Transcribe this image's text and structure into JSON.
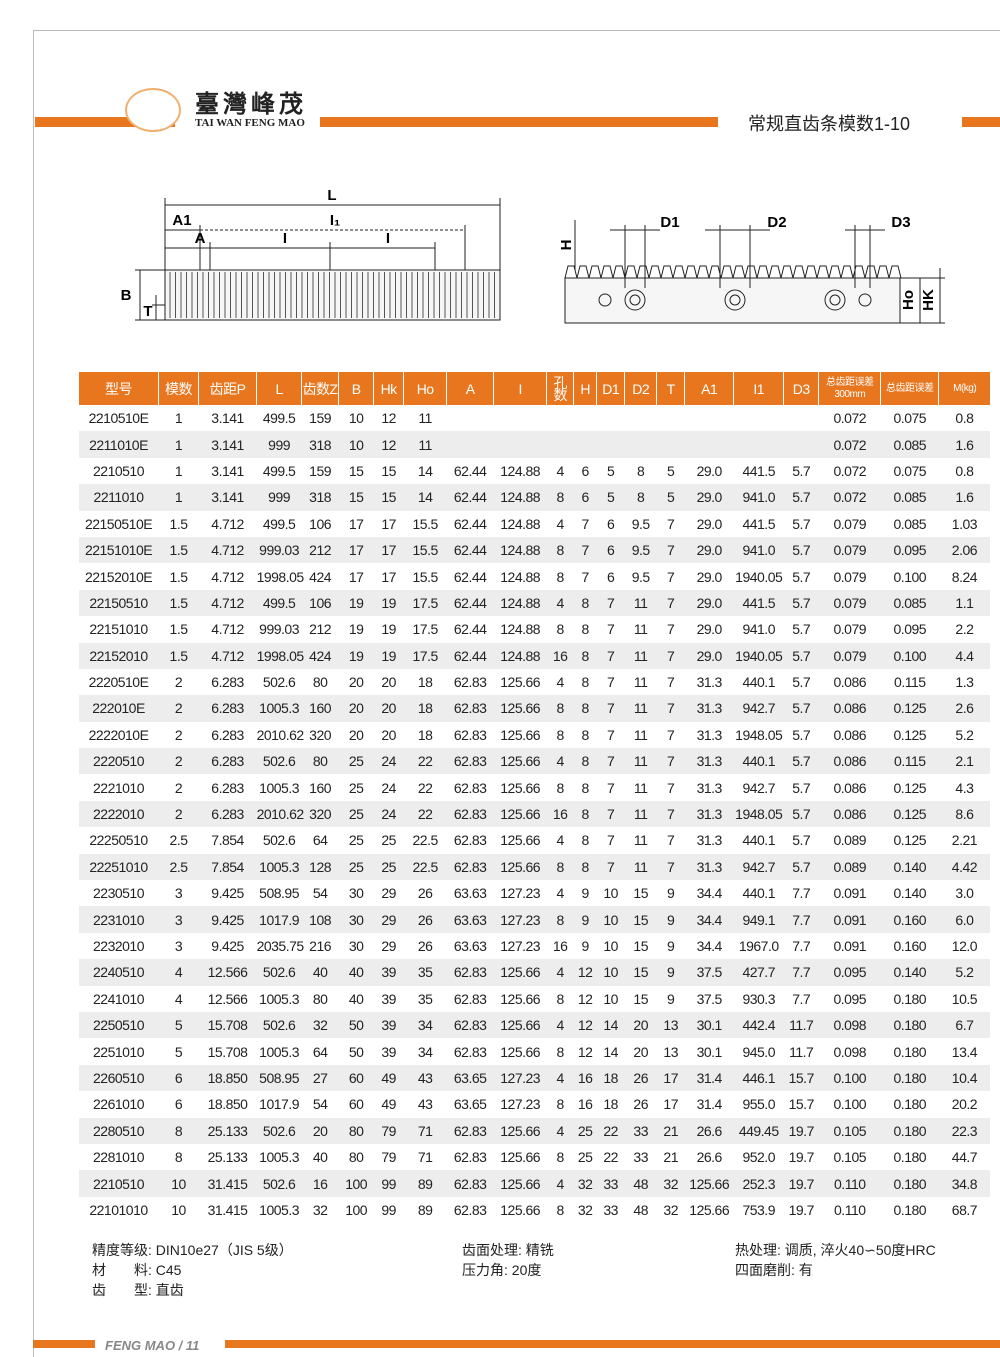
{
  "header": {
    "brand_cn": "臺灣峰茂",
    "brand_en": "TAI WAN FENG MAO",
    "title": "常规直齿条模数1-10"
  },
  "diagrams": {
    "left": {
      "labels": [
        "L",
        "A1",
        "I₁",
        "A",
        "I",
        "I",
        "B",
        "T"
      ]
    },
    "right": {
      "labels": [
        "H",
        "D1",
        "D2",
        "D3",
        "Ho",
        "HK"
      ]
    }
  },
  "table": {
    "headers": [
      "型号",
      "模数",
      "齿距P",
      "L",
      "齿数Z",
      "B",
      "Hk",
      "Ho",
      "A",
      "I",
      "孔数",
      "H",
      "D1",
      "D2",
      "T",
      "A1",
      "I1",
      "D3",
      "总齿距误差300mm",
      "总齿距误差",
      "M(kg)"
    ],
    "rows": [
      [
        "2210510E",
        "1",
        "3.141",
        "499.5",
        "159",
        "10",
        "12",
        "11",
        null,
        null,
        null,
        null,
        null,
        null,
        null,
        null,
        null,
        null,
        "0.072",
        "0.075",
        "0.8"
      ],
      [
        "2211010E",
        "1",
        "3.141",
        "999",
        "318",
        "10",
        "12",
        "11",
        null,
        null,
        null,
        null,
        null,
        null,
        null,
        null,
        null,
        null,
        "0.072",
        "0.085",
        "1.6"
      ],
      [
        "2210510",
        "1",
        "3.141",
        "499.5",
        "159",
        "15",
        "15",
        "14",
        "62.44",
        "124.88",
        "4",
        "6",
        "5",
        "8",
        "5",
        "29.0",
        "441.5",
        "5.7",
        "0.072",
        "0.075",
        "0.8"
      ],
      [
        "2211010",
        "1",
        "3.141",
        "999",
        "318",
        "15",
        "15",
        "14",
        "62.44",
        "124.88",
        "8",
        "6",
        "5",
        "8",
        "5",
        "29.0",
        "941.0",
        "5.7",
        "0.072",
        "0.085",
        "1.6"
      ],
      [
        "22150510E",
        "1.5",
        "4.712",
        "499.5",
        "106",
        "17",
        "17",
        "15.5",
        "62.44",
        "124.88",
        "4",
        "7",
        "6",
        "9.5",
        "7",
        "29.0",
        "441.5",
        "5.7",
        "0.079",
        "0.085",
        "1.03"
      ],
      [
        "22151010E",
        "1.5",
        "4.712",
        "999.03",
        "212",
        "17",
        "17",
        "15.5",
        "62.44",
        "124.88",
        "8",
        "7",
        "6",
        "9.5",
        "7",
        "29.0",
        "941.0",
        "5.7",
        "0.079",
        "0.095",
        "2.06"
      ],
      [
        "22152010E",
        "1.5",
        "4.712",
        "1998.05",
        "424",
        "17",
        "17",
        "15.5",
        "62.44",
        "124.88",
        "8",
        "7",
        "6",
        "9.5",
        "7",
        "29.0",
        "1940.05",
        "5.7",
        "0.079",
        "0.100",
        "8.24"
      ],
      [
        "22150510",
        "1.5",
        "4.712",
        "499.5",
        "106",
        "19",
        "19",
        "17.5",
        "62.44",
        "124.88",
        "4",
        "8",
        "7",
        "11",
        "7",
        "29.0",
        "441.5",
        "5.7",
        "0.079",
        "0.085",
        "1.1"
      ],
      [
        "22151010",
        "1.5",
        "4.712",
        "999.03",
        "212",
        "19",
        "19",
        "17.5",
        "62.44",
        "124.88",
        "8",
        "8",
        "7",
        "11",
        "7",
        "29.0",
        "941.0",
        "5.7",
        "0.079",
        "0.095",
        "2.2"
      ],
      [
        "22152010",
        "1.5",
        "4.712",
        "1998.05",
        "424",
        "19",
        "19",
        "17.5",
        "62.44",
        "124.88",
        "16",
        "8",
        "7",
        "11",
        "7",
        "29.0",
        "1940.05",
        "5.7",
        "0.079",
        "0.100",
        "4.4"
      ],
      [
        "2220510E",
        "2",
        "6.283",
        "502.6",
        "80",
        "20",
        "20",
        "18",
        "62.83",
        "125.66",
        "4",
        "8",
        "7",
        "11",
        "7",
        "31.3",
        "440.1",
        "5.7",
        "0.086",
        "0.115",
        "1.3"
      ],
      [
        "222010E",
        "2",
        "6.283",
        "1005.3",
        "160",
        "20",
        "20",
        "18",
        "62.83",
        "125.66",
        "8",
        "8",
        "7",
        "11",
        "7",
        "31.3",
        "942.7",
        "5.7",
        "0.086",
        "0.125",
        "2.6"
      ],
      [
        "2222010E",
        "2",
        "6.283",
        "2010.62",
        "320",
        "20",
        "20",
        "18",
        "62.83",
        "125.66",
        "8",
        "8",
        "7",
        "11",
        "7",
        "31.3",
        "1948.05",
        "5.7",
        "0.086",
        "0.125",
        "5.2"
      ],
      [
        "2220510",
        "2",
        "6.283",
        "502.6",
        "80",
        "25",
        "24",
        "22",
        "62.83",
        "125.66",
        "4",
        "8",
        "7",
        "11",
        "7",
        "31.3",
        "440.1",
        "5.7",
        "0.086",
        "0.115",
        "2.1"
      ],
      [
        "2221010",
        "2",
        "6.283",
        "1005.3",
        "160",
        "25",
        "24",
        "22",
        "62.83",
        "125.66",
        "8",
        "8",
        "7",
        "11",
        "7",
        "31.3",
        "942.7",
        "5.7",
        "0.086",
        "0.125",
        "4.3"
      ],
      [
        "2222010",
        "2",
        "6.283",
        "2010.62",
        "320",
        "25",
        "24",
        "22",
        "62.83",
        "125.66",
        "16",
        "8",
        "7",
        "11",
        "7",
        "31.3",
        "1948.05",
        "5.7",
        "0.086",
        "0.125",
        "8.6"
      ],
      [
        "22250510",
        "2.5",
        "7.854",
        "502.6",
        "64",
        "25",
        "25",
        "22.5",
        "62.83",
        "125.66",
        "4",
        "8",
        "7",
        "11",
        "7",
        "31.3",
        "440.1",
        "5.7",
        "0.089",
        "0.125",
        "2.21"
      ],
      [
        "22251010",
        "2.5",
        "7.854",
        "1005.3",
        "128",
        "25",
        "25",
        "22.5",
        "62.83",
        "125.66",
        "8",
        "8",
        "7",
        "11",
        "7",
        "31.3",
        "942.7",
        "5.7",
        "0.089",
        "0.140",
        "4.42"
      ],
      [
        "2230510",
        "3",
        "9.425",
        "508.95",
        "54",
        "30",
        "29",
        "26",
        "63.63",
        "127.23",
        "4",
        "9",
        "10",
        "15",
        "9",
        "34.4",
        "440.1",
        "7.7",
        "0.091",
        "0.140",
        "3.0"
      ],
      [
        "2231010",
        "3",
        "9.425",
        "1017.9",
        "108",
        "30",
        "29",
        "26",
        "63.63",
        "127.23",
        "8",
        "9",
        "10",
        "15",
        "9",
        "34.4",
        "949.1",
        "7.7",
        "0.091",
        "0.160",
        "6.0"
      ],
      [
        "2232010",
        "3",
        "9.425",
        "2035.75",
        "216",
        "30",
        "29",
        "26",
        "63.63",
        "127.23",
        "16",
        "9",
        "10",
        "15",
        "9",
        "34.4",
        "1967.0",
        "7.7",
        "0.091",
        "0.160",
        "12.0"
      ],
      [
        "2240510",
        "4",
        "12.566",
        "502.6",
        "40",
        "40",
        "39",
        "35",
        "62.83",
        "125.66",
        "4",
        "12",
        "10",
        "15",
        "9",
        "37.5",
        "427.7",
        "7.7",
        "0.095",
        "0.140",
        "5.2"
      ],
      [
        "2241010",
        "4",
        "12.566",
        "1005.3",
        "80",
        "40",
        "39",
        "35",
        "62.83",
        "125.66",
        "8",
        "12",
        "10",
        "15",
        "9",
        "37.5",
        "930.3",
        "7.7",
        "0.095",
        "0.180",
        "10.5"
      ],
      [
        "2250510",
        "5",
        "15.708",
        "502.6",
        "32",
        "50",
        "39",
        "34",
        "62.83",
        "125.66",
        "4",
        "12",
        "14",
        "20",
        "13",
        "30.1",
        "442.4",
        "11.7",
        "0.098",
        "0.180",
        "6.7"
      ],
      [
        "2251010",
        "5",
        "15.708",
        "1005.3",
        "64",
        "50",
        "39",
        "34",
        "62.83",
        "125.66",
        "8",
        "12",
        "14",
        "20",
        "13",
        "30.1",
        "945.0",
        "11.7",
        "0.098",
        "0.180",
        "13.4"
      ],
      [
        "2260510",
        "6",
        "18.850",
        "508.95",
        "27",
        "60",
        "49",
        "43",
        "63.65",
        "127.23",
        "4",
        "16",
        "18",
        "26",
        "17",
        "31.4",
        "446.1",
        "15.7",
        "0.100",
        "0.180",
        "10.4"
      ],
      [
        "2261010",
        "6",
        "18.850",
        "1017.9",
        "54",
        "60",
        "49",
        "43",
        "63.65",
        "127.23",
        "8",
        "16",
        "18",
        "26",
        "17",
        "31.4",
        "955.0",
        "15.7",
        "0.100",
        "0.180",
        "20.2"
      ],
      [
        "2280510",
        "8",
        "25.133",
        "502.6",
        "20",
        "80",
        "79",
        "71",
        "62.83",
        "125.66",
        "4",
        "25",
        "22",
        "33",
        "21",
        "26.6",
        "449.45",
        "19.7",
        "0.105",
        "0.180",
        "22.3"
      ],
      [
        "2281010",
        "8",
        "25.133",
        "1005.3",
        "40",
        "80",
        "79",
        "71",
        "62.83",
        "125.66",
        "8",
        "25",
        "22",
        "33",
        "21",
        "26.6",
        "952.0",
        "19.7",
        "0.105",
        "0.180",
        "44.7"
      ],
      [
        "2210510",
        "10",
        "31.415",
        "502.6",
        "16",
        "100",
        "99",
        "89",
        "62.83",
        "125.66",
        "4",
        "32",
        "33",
        "48",
        "32",
        "125.66",
        "252.3",
        "19.7",
        "0.110",
        "0.180",
        "34.8"
      ],
      [
        "22101010",
        "10",
        "31.415",
        "1005.3",
        "32",
        "100",
        "99",
        "89",
        "62.83",
        "125.66",
        "8",
        "32",
        "33",
        "48",
        "32",
        "125.66",
        "753.9",
        "19.7",
        "0.110",
        "0.180",
        "68.7"
      ]
    ]
  },
  "specs": [
    [
      "精度等级: DIN10e27（JIS 5级）",
      "材　　料: C45",
      "齿　　型: 直齿"
    ],
    [
      "齿面处理: 精铣",
      "压力角: 20度"
    ],
    [
      "热处理: 调质, 淬火40∽50度HRC",
      "四面磨削: 有"
    ]
  ],
  "footer": "FENG MAO / 11"
}
